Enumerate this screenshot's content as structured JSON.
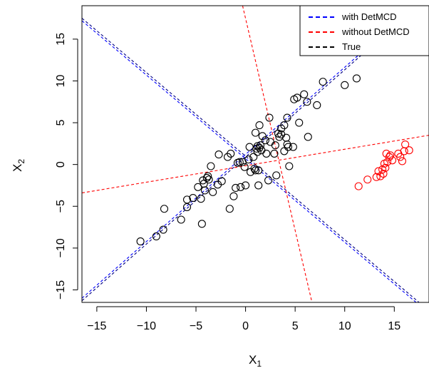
{
  "chart_data": {
    "type": "scatter",
    "title": "",
    "xlabel": "X",
    "xlabel_sub": "1",
    "ylabel": "X",
    "ylabel_sub": "2",
    "xlim": [
      -16.5,
      18.5
    ],
    "ylim": [
      -16.5,
      19
    ],
    "xticks": [
      -15,
      -10,
      -5,
      0,
      5,
      10,
      15
    ],
    "yticks": [
      -15,
      -10,
      -5,
      0,
      5,
      10,
      15
    ],
    "tick_labels_x": [
      "−15",
      "−10",
      "−5",
      "0",
      "5",
      "10",
      "15"
    ],
    "tick_labels_y": [
      "−15",
      "−10",
      "−5",
      "0",
      "5",
      "10",
      "15"
    ],
    "grid": false,
    "legend_position": "top-right",
    "legend": [
      {
        "label": "with DetMCD",
        "color": "#0000ff"
      },
      {
        "label": "without DetMCD",
        "color": "#ff0000"
      },
      {
        "label": "True",
        "color": "#000000"
      }
    ],
    "series": [
      {
        "color": "#000000",
        "points": [
          [
            -10.6,
            -9.2
          ],
          [
            -9.0,
            -8.6
          ],
          [
            -8.3,
            -7.8
          ],
          [
            -8.2,
            -5.3
          ],
          [
            -6.5,
            -6.6
          ],
          [
            -5.9,
            -5.1
          ],
          [
            -5.9,
            -4.2
          ],
          [
            -5.3,
            -4.0
          ],
          [
            -4.8,
            -2.7
          ],
          [
            -4.5,
            -4.1
          ],
          [
            -4.4,
            -7.1
          ],
          [
            -4.3,
            -1.9
          ],
          [
            -4.2,
            -2.3
          ],
          [
            -4.1,
            -3.1
          ],
          [
            -3.9,
            -1.6
          ],
          [
            -3.8,
            -1.4
          ],
          [
            -3.7,
            -1.8
          ],
          [
            -3.5,
            -0.2
          ],
          [
            -3.3,
            -3.3
          ],
          [
            -2.8,
            -2.4
          ],
          [
            -2.7,
            1.2
          ],
          [
            -2.4,
            -2.0
          ],
          [
            -1.8,
            0.9
          ],
          [
            -1.6,
            -5.3
          ],
          [
            -1.5,
            1.3
          ],
          [
            -1.2,
            -3.8
          ],
          [
            -1.0,
            -2.8
          ],
          [
            -0.8,
            0.2
          ],
          [
            -0.6,
            0.3
          ],
          [
            -0.5,
            -2.7
          ],
          [
            -0.3,
            0.3
          ],
          [
            -0.1,
            -0.3
          ],
          [
            0.0,
            -2.5
          ],
          [
            0.3,
            0.6
          ],
          [
            0.4,
            2.1
          ],
          [
            0.5,
            -0.9
          ],
          [
            0.8,
            0.9
          ],
          [
            0.9,
            -0.5
          ],
          [
            1.0,
            3.8
          ],
          [
            1.0,
            -0.7
          ],
          [
            1.1,
            1.9
          ],
          [
            1.2,
            1.5
          ],
          [
            1.2,
            2.2
          ],
          [
            1.3,
            -2.5
          ],
          [
            1.3,
            -0.7
          ],
          [
            1.4,
            2.0
          ],
          [
            1.4,
            4.7
          ],
          [
            1.5,
            2.3
          ],
          [
            1.6,
            1.7
          ],
          [
            1.7,
            3.4
          ],
          [
            2.0,
            2.9
          ],
          [
            2.1,
            1.3
          ],
          [
            2.3,
            -1.9
          ],
          [
            2.4,
            5.6
          ],
          [
            2.5,
            2.7
          ],
          [
            2.9,
            1.3
          ],
          [
            3.0,
            2.3
          ],
          [
            3.1,
            -1.3
          ],
          [
            3.3,
            3.7
          ],
          [
            3.4,
            3.3
          ],
          [
            3.6,
            3.6
          ],
          [
            3.6,
            4.3
          ],
          [
            3.9,
            1.6
          ],
          [
            3.9,
            4.7
          ],
          [
            4.1,
            3.2
          ],
          [
            4.2,
            2.4
          ],
          [
            4.2,
            5.6
          ],
          [
            4.3,
            2.1
          ],
          [
            4.4,
            -0.2
          ],
          [
            4.8,
            2.1
          ],
          [
            4.9,
            7.8
          ],
          [
            5.2,
            8.0
          ],
          [
            5.4,
            5.0
          ],
          [
            5.9,
            8.4
          ],
          [
            6.2,
            7.5
          ],
          [
            6.3,
            3.3
          ],
          [
            7.2,
            7.1
          ],
          [
            7.8,
            9.9
          ],
          [
            10.0,
            9.5
          ],
          [
            11.2,
            10.3
          ]
        ]
      },
      {
        "color": "#ff0000",
        "points": [
          [
            11.4,
            -2.6
          ],
          [
            12.3,
            -1.8
          ],
          [
            13.2,
            -1.5
          ],
          [
            13.4,
            -0.8
          ],
          [
            13.6,
            -1.4
          ],
          [
            13.8,
            -0.6
          ],
          [
            13.9,
            -1.1
          ],
          [
            14.0,
            0.1
          ],
          [
            14.1,
            -0.4
          ],
          [
            14.2,
            1.3
          ],
          [
            14.3,
            0.3
          ],
          [
            14.5,
            0.9
          ],
          [
            14.6,
            1.1
          ],
          [
            14.8,
            0.5
          ],
          [
            15.4,
            1.3
          ],
          [
            15.6,
            0.9
          ],
          [
            15.8,
            0.4
          ],
          [
            16.0,
            1.6
          ],
          [
            16.1,
            2.4
          ],
          [
            16.5,
            1.7
          ]
        ]
      }
    ],
    "lines": [
      {
        "name": "with DetMCD",
        "color": "#0000ff",
        "segments": [
          [
            [
              -16.5,
              -16.0
            ],
            [
              18.5,
              20.5
            ]
          ],
          [
            [
              -16.5,
              17.2
            ],
            [
              17.2,
              -16.5
            ]
          ]
        ]
      },
      {
        "name": "True",
        "color": "#000080",
        "segments": [
          [
            [
              -16.5,
              -16.3
            ],
            [
              18.5,
              20.2
            ]
          ],
          [
            [
              -16.5,
              17.5
            ],
            [
              17.5,
              -16.5
            ]
          ]
        ]
      },
      {
        "name": "without DetMCD",
        "color": "#ff0000",
        "segments": [
          [
            [
              -16.5,
              -3.4
            ],
            [
              18.5,
              3.5
            ]
          ],
          [
            [
              -0.3,
              19.0
            ],
            [
              6.7,
              -16.5
            ]
          ]
        ]
      }
    ]
  }
}
